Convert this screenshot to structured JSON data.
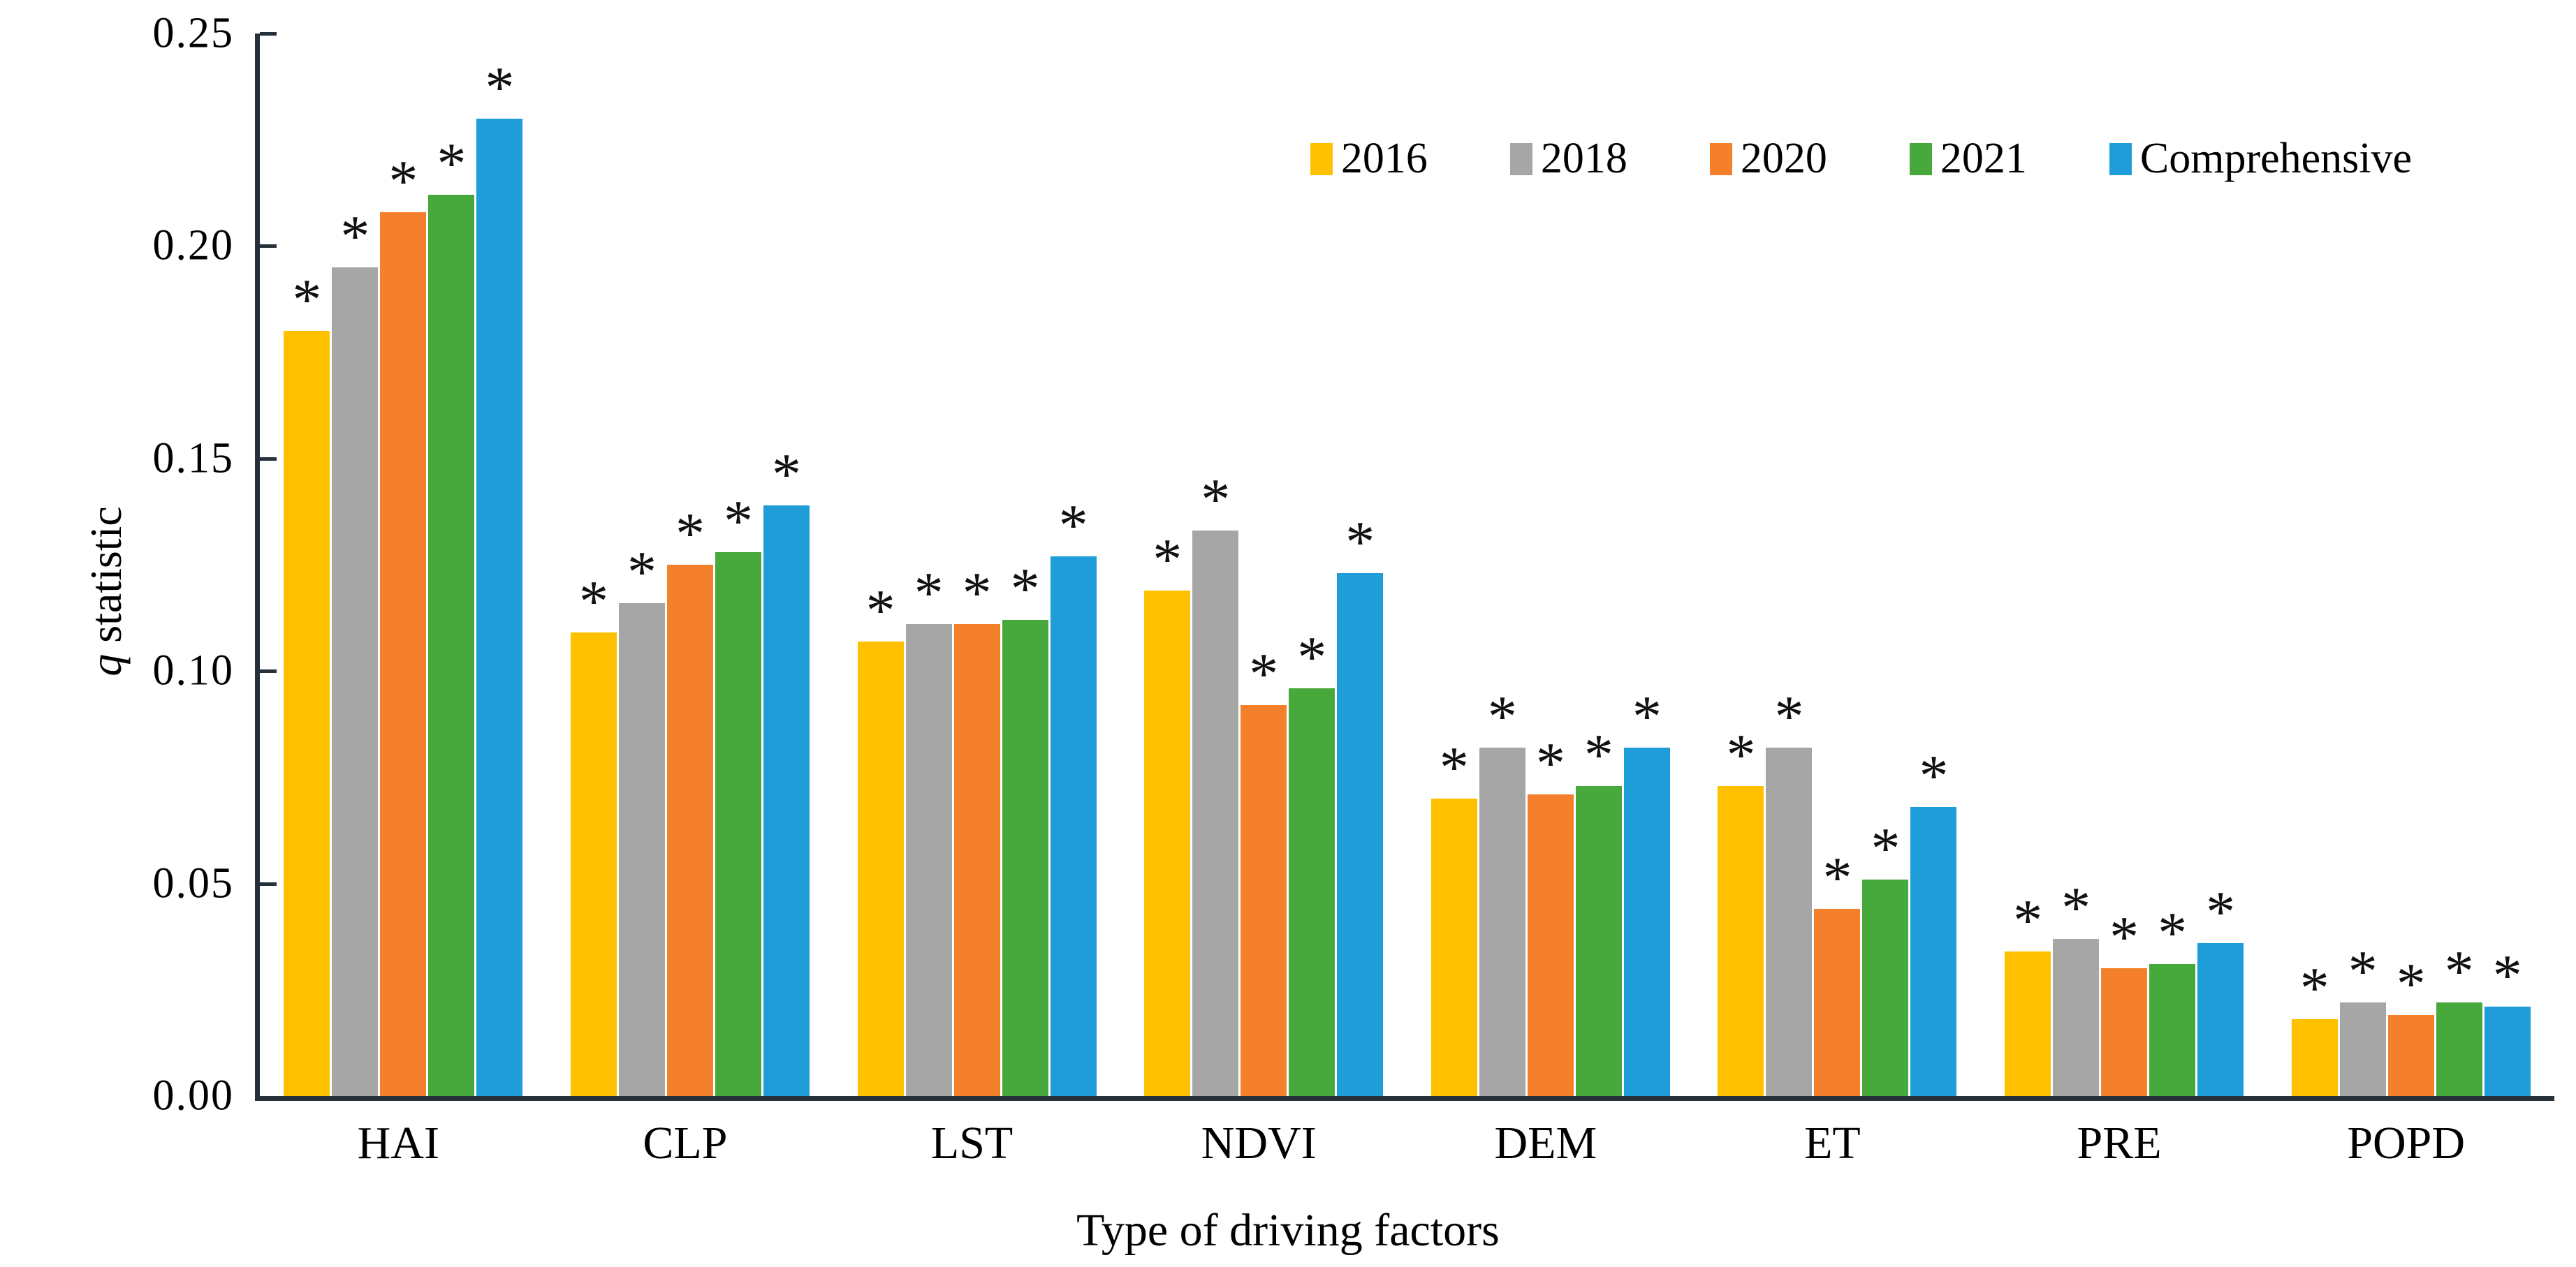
{
  "chart_data": {
    "type": "bar",
    "title": "",
    "xlabel": "Type of driving factors",
    "ylabel_italic": "q",
    "ylabel_rest": " statistic",
    "ylim": [
      0,
      0.25
    ],
    "ytick_step": 0.05,
    "ytick_labels": [
      "0.00",
      "0.05",
      "0.10",
      "0.15",
      "0.20",
      "0.25"
    ],
    "grid": false,
    "legend_position": "top-right",
    "significance_marker": "*",
    "significance_note": "asterisk shown above every bar",
    "categories": [
      "HAI",
      "CLP",
      "LST",
      "NDVI",
      "DEM",
      "ET",
      "PRE",
      "POPD"
    ],
    "series": [
      {
        "name": "2016",
        "color": "#FFC000",
        "marker": "*",
        "values": [
          0.18,
          0.109,
          0.107,
          0.119,
          0.07,
          0.073,
          0.034,
          0.018
        ]
      },
      {
        "name": "2018",
        "color": "#A6A6A6",
        "marker": "*",
        "values": [
          0.195,
          0.116,
          0.111,
          0.133,
          0.082,
          0.082,
          0.037,
          0.022
        ]
      },
      {
        "name": "2020",
        "color": "#F5802C",
        "marker": "*",
        "values": [
          0.208,
          0.125,
          0.111,
          0.092,
          0.071,
          0.044,
          0.03,
          0.019
        ]
      },
      {
        "name": "2021",
        "color": "#47A83C",
        "marker": "*",
        "values": [
          0.212,
          0.128,
          0.112,
          0.096,
          0.073,
          0.051,
          0.031,
          0.022
        ]
      },
      {
        "name": "Comprehensive",
        "color": "#1E9DD9",
        "marker": "*",
        "values": [
          0.23,
          0.139,
          0.127,
          0.123,
          0.082,
          0.068,
          0.036,
          0.021
        ]
      }
    ],
    "axis_color": "#25303b"
  }
}
